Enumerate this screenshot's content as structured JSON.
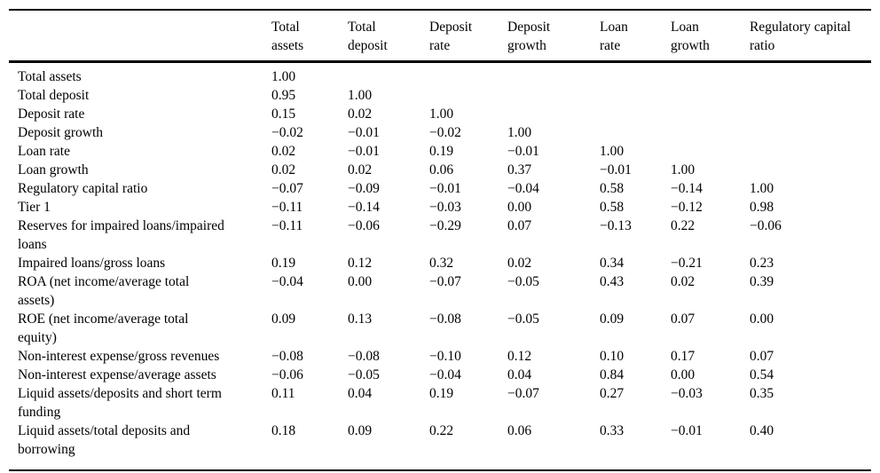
{
  "colors": {
    "text": "#000000",
    "background": "#ffffff",
    "rule": "#000000"
  },
  "table": {
    "corner_label": "",
    "columns": [
      "Total\nassets",
      "Total\ndeposit",
      "Deposit\nrate",
      "Deposit\ngrowth",
      "Loan\nrate",
      "Loan\ngrowth",
      "Regulatory capital\nratio"
    ],
    "rows": [
      {
        "label": "Total assets",
        "values": [
          "1.00",
          "",
          "",
          "",
          "",
          "",
          ""
        ]
      },
      {
        "label": "Total deposit",
        "values": [
          "0.95",
          "1.00",
          "",
          "",
          "",
          "",
          ""
        ]
      },
      {
        "label": "Deposit rate",
        "values": [
          "0.15",
          "0.02",
          "1.00",
          "",
          "",
          "",
          ""
        ]
      },
      {
        "label": "Deposit growth",
        "values": [
          "−0.02",
          "−0.01",
          "−0.02",
          "1.00",
          "",
          "",
          ""
        ]
      },
      {
        "label": "Loan rate",
        "values": [
          "0.02",
          "−0.01",
          "0.19",
          "−0.01",
          "1.00",
          "",
          ""
        ]
      },
      {
        "label": "Loan growth",
        "values": [
          "0.02",
          "0.02",
          "0.06",
          "0.37",
          "−0.01",
          "1.00",
          ""
        ]
      },
      {
        "label": "Regulatory capital ratio",
        "values": [
          "−0.07",
          "−0.09",
          "−0.01",
          "−0.04",
          "0.58",
          "−0.14",
          "1.00"
        ]
      },
      {
        "label": "Tier 1",
        "values": [
          "−0.11",
          "−0.14",
          "−0.03",
          "0.00",
          "0.58",
          "−0.12",
          "0.98"
        ]
      },
      {
        "label": "Reserves for impaired loans/impaired\nloans",
        "values": [
          "−0.11",
          "−0.06",
          "−0.29",
          "0.07",
          "−0.13",
          "0.22",
          "−0.06"
        ]
      },
      {
        "label": "Impaired loans/gross loans",
        "values": [
          "0.19",
          "0.12",
          "0.32",
          "0.02",
          "0.34",
          "−0.21",
          "0.23"
        ]
      },
      {
        "label": "ROA (net income/average total\nassets)",
        "values": [
          "−0.04",
          "0.00",
          "−0.07",
          "−0.05",
          "0.43",
          "0.02",
          "0.39"
        ]
      },
      {
        "label": "ROE (net income/average total\nequity)",
        "values": [
          "0.09",
          "0.13",
          "−0.08",
          "−0.05",
          "0.09",
          "0.07",
          "0.00"
        ]
      },
      {
        "label": "Non-interest expense/gross revenues",
        "values": [
          "−0.08",
          "−0.08",
          "−0.10",
          "0.12",
          "0.10",
          "0.17",
          "0.07"
        ]
      },
      {
        "label": "Non-interest expense/average assets",
        "values": [
          "−0.06",
          "−0.05",
          "−0.04",
          "0.04",
          "0.84",
          "0.00",
          "0.54"
        ]
      },
      {
        "label": "Liquid assets/deposits and short term\nfunding",
        "values": [
          "0.11",
          "0.04",
          "0.19",
          "−0.07",
          "0.27",
          "−0.03",
          "0.35"
        ]
      },
      {
        "label": "Liquid assets/total deposits and\nborrowing",
        "values": [
          "0.18",
          "0.09",
          "0.22",
          "0.06",
          "0.33",
          "−0.01",
          "0.40"
        ]
      }
    ]
  }
}
